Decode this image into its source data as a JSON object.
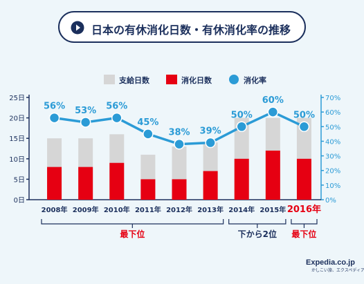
{
  "title": "日本の有休消化日数・有休消化率の推移",
  "title_icon": "play-circle-icon",
  "colors": {
    "supply": "#d6d6d6",
    "used": "#e60012",
    "rate": "#2b9bd6",
    "axis_left": "#1b2f5c",
    "axis_right": "#2b9bd6",
    "title_border": "#1b2f5c",
    "background": "#eef6fa"
  },
  "chart_data": {
    "type": "bar",
    "categories": [
      "2008年",
      "2009年",
      "2010年",
      "2011年",
      "2012年",
      "2013年",
      "2014年",
      "2015年",
      "2016年"
    ],
    "legend_position": "top",
    "series": [
      {
        "name": "支給日数",
        "type": "bar",
        "axis": "left",
        "values": [
          15,
          15,
          16,
          11,
          13,
          14,
          20,
          20,
          20
        ]
      },
      {
        "name": "消化日数",
        "type": "bar",
        "axis": "left",
        "values": [
          8,
          8,
          9,
          5,
          5,
          7,
          10,
          12,
          10
        ]
      },
      {
        "name": "消化率",
        "type": "line",
        "axis": "right",
        "values": [
          56,
          53,
          56,
          45,
          38,
          39,
          50,
          60,
          50
        ]
      }
    ],
    "rate_labels": [
      "56%",
      "53%",
      "56%",
      "45%",
      "38%",
      "39%",
      "50%",
      "60%",
      "50%"
    ],
    "y_left": {
      "min": 0,
      "max": 25,
      "ticks": [
        0,
        5,
        10,
        15,
        20,
        25
      ],
      "tick_labels": [
        "0日",
        "5日",
        "10日",
        "15日",
        "20日",
        "25日"
      ]
    },
    "y_right": {
      "min": 0,
      "max": 70,
      "ticks": [
        0,
        10,
        20,
        30,
        40,
        50,
        60,
        70
      ],
      "tick_labels": [
        "0%",
        "10%",
        "20%",
        "30%",
        "40%",
        "50%",
        "60%",
        "70%"
      ]
    },
    "grid": false,
    "highlight_category": "2016年",
    "rank_groups": [
      {
        "label": "最下位",
        "from": 0,
        "to": 5
      },
      {
        "label": "下から2位",
        "from": 6,
        "to": 7
      },
      {
        "label": "最下位",
        "from": 8,
        "to": 8
      }
    ]
  },
  "logo": {
    "main": "Expedia.co.jp",
    "sub": "かしこい旅、エクスペディア"
  }
}
